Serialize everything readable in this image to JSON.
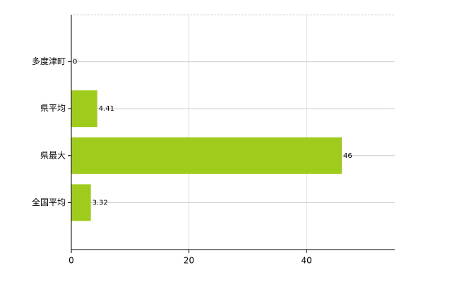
{
  "chart_data": {
    "type": "bar",
    "orientation": "horizontal",
    "categories": [
      "多度津町",
      "県平均",
      "県最大",
      "全国平均"
    ],
    "values": [
      0,
      4.41,
      46,
      3.32
    ],
    "color": "#9fcb1c",
    "xlim": [
      0,
      55
    ],
    "xticks": [
      0,
      20,
      40
    ],
    "grid": true
  }
}
